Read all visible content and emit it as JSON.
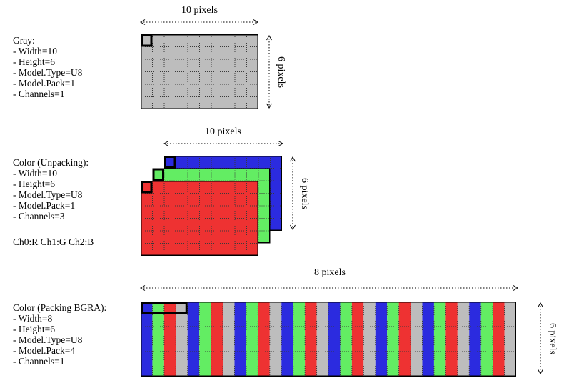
{
  "palette": {
    "gray": "#bdbdbd",
    "red": "#ee3232",
    "green": "#63ed63",
    "blue": "#2b2bdf"
  },
  "sections": [
    {
      "title": "Gray:",
      "props": [
        "- Width=10",
        "- Height=6",
        "- Model.Type=U8",
        "- Model.Pack=1",
        "- Channels=1"
      ],
      "width_label": "10 pixels",
      "height_label": "6 pixels",
      "grid": {
        "cols": 10,
        "rows": 6,
        "layers": [
          "gray"
        ],
        "highlight": {
          "cols": 1,
          "rows": 1
        }
      }
    },
    {
      "title": "Color (Unpacking):",
      "props": [
        "- Width=10",
        "- Height=6",
        "- Model.Type=U8",
        "- Model.Pack=1",
        "- Channels=3"
      ],
      "note": "Ch0:R Ch1:G Ch2:B",
      "width_label": "10 pixels",
      "height_label": "6 pixels",
      "grid": {
        "cols": 10,
        "rows": 6,
        "layers": [
          "blue",
          "green",
          "red"
        ],
        "highlight": {
          "cols": 1,
          "rows": 1
        }
      }
    },
    {
      "title": "Color (Packing BGRA):",
      "props": [
        "- Width=8",
        "- Height=6",
        "- Model.Type=U8",
        "- Model.Pack=4",
        "- Channels=1"
      ],
      "width_label": "8 pixels",
      "height_label": "6 pixels",
      "grid": {
        "cols": 32,
        "rows": 6,
        "layers": [
          "pattern"
        ],
        "column_pattern": [
          "blue",
          "green",
          "red",
          "gray"
        ],
        "highlight": {
          "cols": 4,
          "rows": 1
        }
      }
    }
  ]
}
